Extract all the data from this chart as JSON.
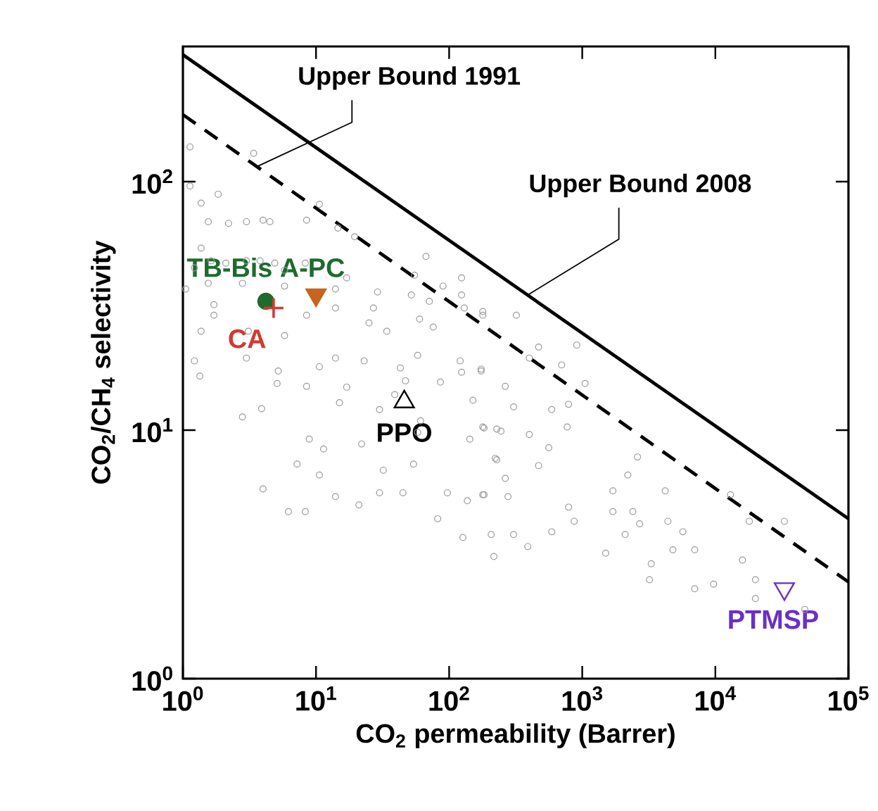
{
  "chart_data": {
    "type": "scatter",
    "xlabel": "CO$_{2}$ permeability (Barrer)",
    "ylabel": "CO$_{2}$/CH$_{4}$ selectivity",
    "log": "xy",
    "xlim": [
      1,
      100000
    ],
    "ylim": [
      1,
      350
    ],
    "xticks": [
      {
        "value": 1,
        "label": "10$^{0}$"
      },
      {
        "value": 10,
        "label": "10$^{1}$"
      },
      {
        "value": 100,
        "label": "10$^{2}$"
      },
      {
        "value": 1000,
        "label": "10$^{3}$"
      },
      {
        "value": 10000,
        "label": "10$^{4}$"
      },
      {
        "value": 100000,
        "label": "10$^{5}$"
      }
    ],
    "yticks": [
      {
        "value": 1,
        "label": "10$^{0}$"
      },
      {
        "value": 10,
        "label": "10$^{1}$"
      },
      {
        "value": 100,
        "label": "10$^{2}$"
      }
    ],
    "annotations": [
      {
        "text": "Upper Bound 1991",
        "x": 3.6,
        "y": 115
      },
      {
        "text": "Upper Bound 2008",
        "x": 390,
        "y": 35
      }
    ],
    "series": [
      {
        "marker": "circle",
        "color": "#9a9a9a",
        "x": [
          1.13,
          3.4,
          1.13,
          1.37,
          1.84,
          1.55,
          2.2,
          3.0,
          4.0,
          4.5,
          8.5,
          10.6,
          14.6,
          19.5,
          1.37,
          1.22,
          1.63,
          2.1,
          3.0,
          3.8,
          4.9,
          5.8,
          8.3,
          17,
          14,
          67,
          55,
          90,
          124,
          1.55,
          1.05,
          2.8,
          5.8,
          29,
          52,
          71,
          124,
          1.71,
          1.71,
          8.5,
          14,
          27,
          60,
          76,
          130,
          179,
          1.37,
          3.1,
          5.8,
          25,
          34,
          1.22,
          1.34,
          3.0,
          5.2,
          10.6,
          14,
          23,
          43,
          58,
          121,
          174,
          47,
          86,
          124,
          5.1,
          8.5,
          17,
          15,
          2.8,
          3.9,
          30,
          39,
          151,
          61,
          8.9,
          11.4,
          22,
          58,
          143,
          179,
          228,
          222,
          54,
          7.2,
          32,
          10.6,
          4.0,
          30,
          45,
          14,
          97,
          137,
          179,
          21,
          6.2,
          8.3,
          82,
          127,
          207,
          217,
          179,
          320,
          470,
          400,
          910,
          700,
          174,
          264,
          1050,
          305,
          590,
          790,
          183,
          245,
          400,
          770,
          560,
          228,
          470,
          2600,
          264,
          2200,
          183,
          277,
          1700,
          4200,
          13000,
          790,
          870,
          1700,
          2400,
          2700,
          4400,
          5700,
          18000,
          33000,
          305,
          590,
          2100,
          390,
          1500,
          4800,
          7000,
          3300,
          16000,
          3200,
          7000,
          9700,
          20000,
          20000,
          47000
        ],
        "values": [
          138,
          130,
          96,
          82,
          89,
          69,
          68,
          69,
          70,
          69,
          70,
          81,
          65,
          60,
          54,
          45,
          48,
          47,
          48,
          48,
          47,
          44,
          47,
          41,
          37,
          50,
          42,
          38,
          41,
          39,
          37,
          39,
          38,
          36,
          35,
          33,
          35,
          32,
          29,
          29,
          31,
          31,
          28,
          26,
          31,
          29,
          25,
          25,
          24,
          27,
          25,
          19,
          16.5,
          19.5,
          17.3,
          18,
          19.5,
          19,
          17.8,
          20,
          19,
          17.6,
          15.8,
          15.6,
          17.1,
          15.4,
          15,
          14.9,
          12.9,
          11.3,
          12.2,
          12.1,
          13.9,
          13.2,
          10.9,
          9.2,
          8.4,
          8.8,
          9.8,
          9.2,
          10.3,
          10.1,
          7.7,
          7.3,
          7.3,
          6.9,
          6.6,
          5.8,
          5.6,
          5.6,
          5.4,
          5.6,
          5.2,
          5.5,
          5.0,
          4.7,
          4.7,
          4.4,
          3.7,
          3.8,
          3.1,
          30,
          29,
          21.6,
          19.5,
          22,
          18.3,
          17.3,
          15,
          15.4,
          12.4,
          12.1,
          12.7,
          10.2,
          9.9,
          9.6,
          10.3,
          8.5,
          7.6,
          7.2,
          7.8,
          6.4,
          6.6,
          5.5,
          5.4,
          5.7,
          5.7,
          5.5,
          4.9,
          4.3,
          4.7,
          4.7,
          4.2,
          4.3,
          3.9,
          4.3,
          4.3,
          3.8,
          3.9,
          3.8,
          3.4,
          3.2,
          3.3,
          3.3,
          2.9,
          3.0,
          2.5,
          2.3,
          2.4,
          2.5,
          2.1,
          1.9
        ]
      },
      {
        "type": "line",
        "line_style": "solid",
        "color": "#000000",
        "x": [
          1,
          100000
        ],
        "values": [
          324,
          4.4
        ]
      },
      {
        "type": "line",
        "line_style": "dashed",
        "color": "#000000",
        "x": [
          1,
          100000
        ],
        "values": [
          186,
          2.45
        ]
      },
      {
        "name": "TB-Bis A-PC",
        "marker": "circle",
        "color": "#1e6b2e",
        "x": [
          4.2
        ],
        "values": [
          33
        ]
      },
      {
        "name": "CA",
        "marker": "cross",
        "color": "#d03a32",
        "x": [
          4.8
        ],
        "values": [
          31
        ]
      },
      {
        "marker": "triangle down",
        "color": "#c8641e",
        "x": [
          10
        ],
        "values": [
          35
        ]
      },
      {
        "name": "PPO",
        "marker": "triangle",
        "color": "#000000",
        "x": [
          46
        ],
        "values": [
          13
        ]
      },
      {
        "name": "PTMSP",
        "marker": "triangle down",
        "color": "#6a2fc8",
        "x": [
          33000
        ],
        "values": [
          2.3
        ]
      }
    ]
  }
}
